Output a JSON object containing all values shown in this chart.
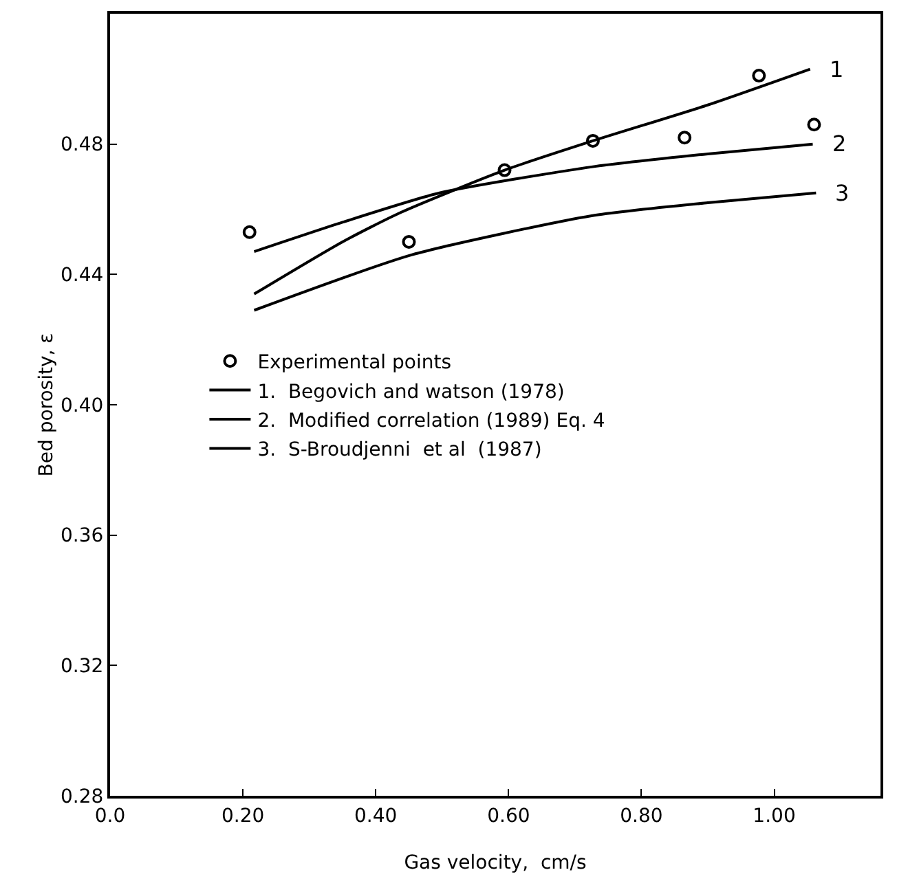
{
  "chart_data": {
    "type": "line",
    "xlabel": "Gas velocity,  cm/s",
    "ylabel": "Bed porosity, ε",
    "xlim": [
      0,
      1.16
    ],
    "ylim": [
      0.28,
      0.52
    ],
    "xticks": [
      {
        "value": 0,
        "label": "0.0"
      },
      {
        "value": 0.2,
        "label": "0.20"
      },
      {
        "value": 0.4,
        "label": "0.40"
      },
      {
        "value": 0.6,
        "label": "0.60"
      },
      {
        "value": 0.8,
        "label": "0.80"
      },
      {
        "value": 1.0,
        "label": "1.00"
      }
    ],
    "yticks": [
      0.28,
      0.32,
      0.36,
      {
        "value": 0.4,
        "label": "0.40"
      },
      0.44,
      0.48
    ],
    "grid": false,
    "legend": "left",
    "series": [
      {
        "name": "Experimental points",
        "type": "scatter",
        "marker": "circle",
        "color": "#000000",
        "x": [
          0.21,
          0.45,
          0.594,
          0.727,
          0.865,
          0.977,
          1.06
        ],
        "values": [
          0.453,
          0.45,
          0.472,
          0.481,
          0.482,
          0.501,
          0.486
        ]
      },
      {
        "name": "1.  Begovich and watson (1978)",
        "marker": "none",
        "color": "#000000",
        "x": [
          0.217,
          0.35,
          0.4375,
          0.594,
          0.727,
          0.9,
          1.054
        ],
        "values": [
          0.434,
          0.45,
          0.459,
          0.472,
          0.481,
          0.492,
          0.503
        ]
      },
      {
        "name": "2.  Modified correlation (1989) Eq. 4",
        "marker": "none",
        "color": "#000000",
        "x": [
          0.217,
          0.35,
          0.496,
          0.725,
          0.9,
          1.058
        ],
        "values": [
          0.447,
          0.456,
          0.465,
          0.473,
          0.477,
          0.48
        ]
      },
      {
        "name": "3.  S-Broudjenni  et al  (1987)",
        "marker": "none",
        "color": "#000000",
        "x": [
          0.217,
          0.454,
          0.725,
          0.9,
          1.063
        ],
        "values": [
          0.429,
          0.446,
          0.458,
          0.462,
          0.465
        ]
      }
    ],
    "annotations": [
      {
        "text": "1",
        "x": 1.054,
        "y": 0.503
      },
      {
        "text": "2",
        "x": 1.058,
        "y": 0.48
      },
      {
        "text": "3",
        "x": 1.063,
        "y": 0.465
      }
    ]
  }
}
